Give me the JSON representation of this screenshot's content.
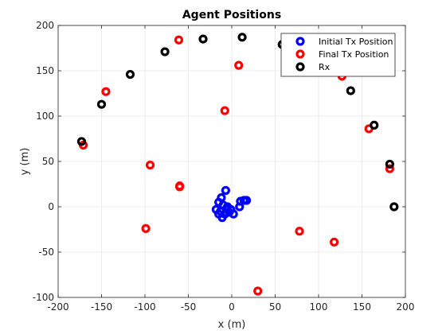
{
  "window": {
    "background": "#ffffff"
  },
  "chart_data": {
    "type": "scatter",
    "title": "Agent Positions",
    "xlabel": "x (m)",
    "ylabel": "y (m)",
    "xlim": [
      -200,
      200
    ],
    "ylim": [
      -100,
      200
    ],
    "xticks": [
      -200,
      -150,
      -100,
      -50,
      0,
      50,
      100,
      150,
      200
    ],
    "yticks": [
      -100,
      -50,
      0,
      50,
      100,
      150,
      200
    ],
    "grid": true,
    "legend_position": "top-right",
    "series": [
      {
        "name": "Initial Tx Position",
        "color": "#0000ff",
        "points": [
          [
            -7,
            18
          ],
          [
            -12,
            10
          ],
          [
            -15,
            5
          ],
          [
            -10,
            2
          ],
          [
            -5,
            0
          ],
          [
            -18,
            -3
          ],
          [
            -13,
            -5
          ],
          [
            -8,
            -8
          ],
          [
            -11,
            -12
          ],
          [
            -3,
            -6
          ],
          [
            2,
            -8
          ],
          [
            -1,
            -3
          ],
          [
            10,
            6
          ],
          [
            14,
            7
          ],
          [
            17,
            7
          ],
          [
            9,
            0
          ],
          [
            -15,
            -8
          ],
          [
            -6,
            -2
          ]
        ]
      },
      {
        "name": "Final Tx Position",
        "color": "#ff0000",
        "points": [
          [
            -61,
            184
          ],
          [
            8,
            156
          ],
          [
            127,
            144
          ],
          [
            -145,
            127
          ],
          [
            -8,
            106
          ],
          [
            158,
            86
          ],
          [
            -171,
            68
          ],
          [
            -94,
            46
          ],
          [
            182,
            42
          ],
          [
            -60,
            23
          ],
          [
            -60,
            22
          ],
          [
            -99,
            -24
          ],
          [
            78,
            -27
          ],
          [
            118,
            -39
          ],
          [
            30,
            -93
          ]
        ]
      },
      {
        "name": "Rx",
        "color": "#000000",
        "points": [
          [
            -33,
            185
          ],
          [
            12,
            187
          ],
          [
            58,
            179
          ],
          [
            -77,
            171
          ],
          [
            -117,
            146
          ],
          [
            137,
            128
          ],
          [
            -150,
            113
          ],
          [
            164,
            90
          ],
          [
            -173,
            72
          ],
          [
            182,
            47
          ],
          [
            187,
            0
          ]
        ]
      }
    ]
  }
}
